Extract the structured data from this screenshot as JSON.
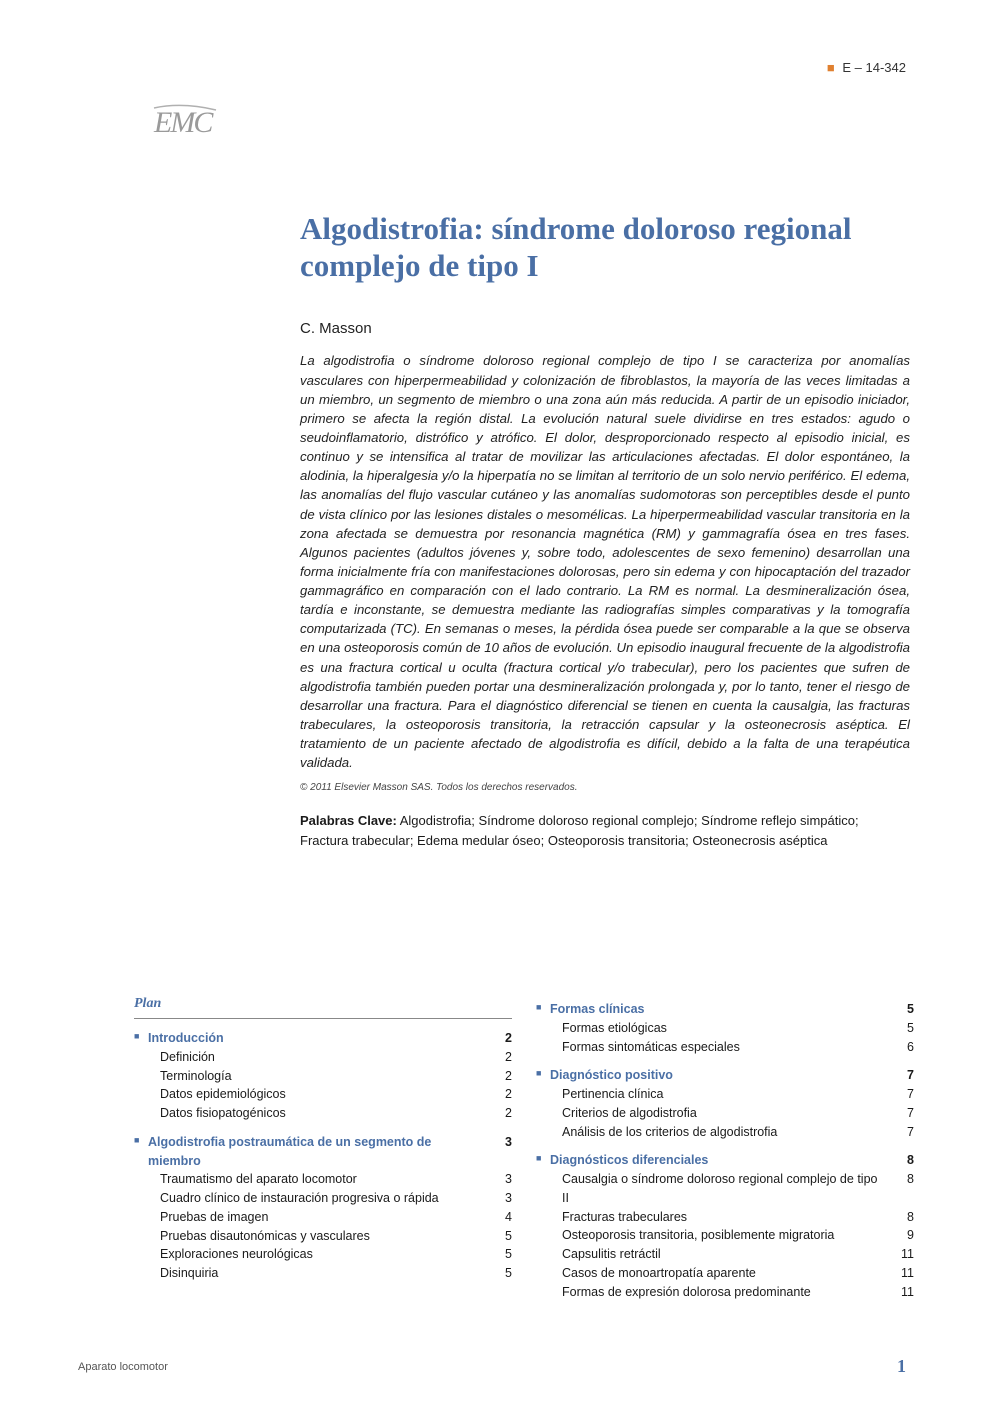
{
  "page_code": "E – 14-342",
  "logo_text": "EMC",
  "title": "Algodistrofia: síndrome doloroso regional complejo de tipo I",
  "author": "C. Masson",
  "abstract": "La algodistrofia o síndrome doloroso regional complejo de tipo I se caracteriza por anomalías vasculares con hiperpermeabilidad y colonización de fibroblastos, la mayoría de las veces limitadas a un miembro, un segmento de miembro o una zona aún más reducida. A partir de un episodio iniciador, primero se afecta la región distal. La evolución natural suele dividirse en tres estados: agudo o seudoinflamatorio, distrófico y atrófico. El dolor, desproporcionado respecto al episodio inicial, es continuo y se intensifica al tratar de movilizar las articulaciones afectadas. El dolor espontáneo, la alodinia, la hiperalgesia y/o la hiperpatía no se limitan al territorio de un solo nervio periférico. El edema, las anomalías del flujo vascular cutáneo y las anomalías sudomotoras son perceptibles desde el punto de vista clínico por las lesiones distales o mesomélicas. La hiperpermeabilidad vascular transitoria en la zona afectada se demuestra por resonancia magnética (RM) y gammagrafía ósea en tres fases. Algunos pacientes (adultos jóvenes y, sobre todo, adolescentes de sexo femenino) desarrollan una forma inicialmente fría con manifestaciones dolorosas, pero sin edema y con hipocaptación del trazador gammagráfico en comparación con el lado contrario. La RM es normal. La desmineralización ósea, tardía e inconstante, se demuestra mediante las radiografías simples comparativas y la tomografía computarizada (TC). En semanas o meses, la pérdida ósea puede ser comparable a la que se observa en una osteoporosis común de 10 años de evolución. Un episodio inaugural frecuente de la algodistrofia es una fractura cortical u oculta (fractura cortical y/o trabecular), pero los pacientes que sufren de algodistrofia también pueden portar una desmineralización prolongada y, por lo tanto, tener el riesgo de desarrollar una fractura. Para el diagnóstico diferencial se tienen en cuenta la causalgia, las fracturas trabeculares, la osteoporosis transitoria, la retracción capsular y la osteonecrosis aséptica. El tratamiento de un paciente afectado de algodistrofia es difícil, debido a la falta de una terapéutica validada.",
  "copyright": "© 2011 Elsevier Masson SAS. Todos los derechos reservados.",
  "keywords_label": "Palabras Clave:",
  "keywords": " Algodistrofia; Síndrome doloroso regional complejo; Síndrome reflejo simpático; Fractura trabecular; Edema medular óseo; Osteoporosis transitoria; Osteonecrosis aséptica",
  "plan_header": "Plan",
  "plan_left": [
    {
      "level": 0,
      "label": "Introducción",
      "page": "2"
    },
    {
      "level": 1,
      "label": "Definición",
      "page": "2"
    },
    {
      "level": 1,
      "label": "Terminología",
      "page": "2"
    },
    {
      "level": 1,
      "label": "Datos epidemiológicos",
      "page": "2"
    },
    {
      "level": 1,
      "label": "Datos fisiopatogénicos",
      "page": "2"
    },
    {
      "level": 0,
      "label": "Algodistrofia postraumática de un segmento de miembro",
      "page": "3"
    },
    {
      "level": 1,
      "label": "Traumatismo del aparato locomotor",
      "page": "3"
    },
    {
      "level": 1,
      "label": "Cuadro clínico de instauración progresiva o rápida",
      "page": "3"
    },
    {
      "level": 1,
      "label": "Pruebas de imagen",
      "page": "4"
    },
    {
      "level": 1,
      "label": "Pruebas disautonómicas y vasculares",
      "page": "5"
    },
    {
      "level": 1,
      "label": "Exploraciones neurológicas",
      "page": "5"
    },
    {
      "level": 1,
      "label": "Disinquiria",
      "page": "5"
    }
  ],
  "plan_right": [
    {
      "level": 0,
      "label": "Formas clínicas",
      "page": "5"
    },
    {
      "level": 1,
      "label": "Formas etiológicas",
      "page": "5"
    },
    {
      "level": 1,
      "label": "Formas sintomáticas especiales",
      "page": "6"
    },
    {
      "level": 0,
      "label": "Diagnóstico positivo",
      "page": "7"
    },
    {
      "level": 1,
      "label": "Pertinencia clínica",
      "page": "7"
    },
    {
      "level": 1,
      "label": "Criterios de algodistrofia",
      "page": "7"
    },
    {
      "level": 1,
      "label": "Análisis de los criterios de algodistrofia",
      "page": "7"
    },
    {
      "level": 0,
      "label": "Diagnósticos diferenciales",
      "page": "8"
    },
    {
      "level": 1,
      "label": "Causalgia o síndrome doloroso regional complejo de tipo II",
      "page": "8"
    },
    {
      "level": 1,
      "label": "Fracturas trabeculares",
      "page": "8"
    },
    {
      "level": 1,
      "label": "Osteoporosis transitoria, posiblemente migratoria",
      "page": "9"
    },
    {
      "level": 1,
      "label": "Capsulitis retráctil",
      "page": "11"
    },
    {
      "level": 1,
      "label": "Casos de monoartropatía aparente",
      "page": "11"
    },
    {
      "level": 1,
      "label": "Formas de expresión dolorosa predominante",
      "page": "11"
    }
  ],
  "footer_journal": "Aparato locomotor",
  "footer_pagenum": "1",
  "colors": {
    "heading_blue": "#4a6fa5",
    "marker_orange": "#e08030",
    "text": "#1a1a1a",
    "logo_gray": "#8a8a8a",
    "background": "#ffffff"
  },
  "typography": {
    "title_fontsize": 31,
    "author_fontsize": 15,
    "abstract_fontsize": 13.2,
    "plan_fontsize": 12.5,
    "copyright_fontsize": 10,
    "keywords_fontsize": 13
  }
}
